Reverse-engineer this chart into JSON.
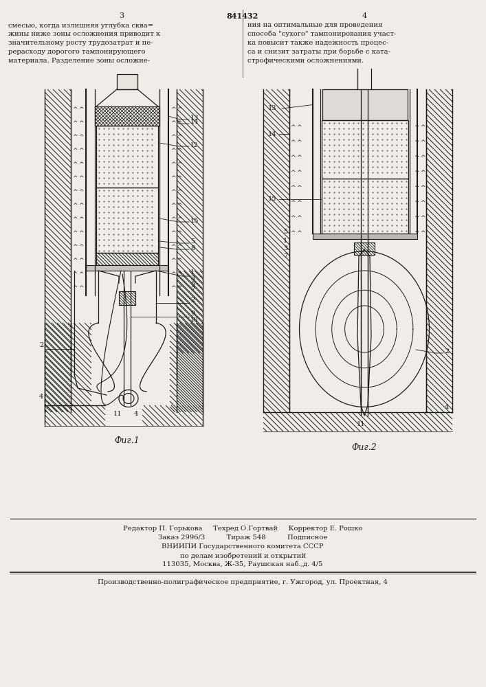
{
  "page_color": "#f0ede8",
  "line_color": "#1a1a1a",
  "fig1_caption": "Фиг.1",
  "fig2_caption": "Фиг.2",
  "left_text_lines": [
    "смесью, когда излишняя углубка сква=",
    "жины ниже зоны осложнения приводит к",
    "значительному росту трудозатрат и пе-",
    "рерасходу дорогого тампонирующего",
    "материала. Разделение зоны осложне-"
  ],
  "right_text_lines": [
    "ния на оптимальные для проведения",
    "способа \"сухого\" тампонирования участ-",
    "ка повысит также надежность процес-",
    "са и снизит затраты при борьбе с ката-",
    "строфическими осложнениями."
  ],
  "editor_line": "Редактор П. Горькова     Техред О.Гортвай     Корректор Е. Рошко",
  "order_line": "Заказ 2996/3          Тираж 548          Подписное",
  "vniip_line1": "ВНИИПИ Государственного комитета СССР",
  "vniip_line2": "по делам изобретений и открытий",
  "vniip_line3": "113035, Москва, Ж-35, Раушская наб.,д. 4/5",
  "factory_line": "Производственно-полиграфическое предприятие, г. Ужгород, ул. Проектная, 4"
}
